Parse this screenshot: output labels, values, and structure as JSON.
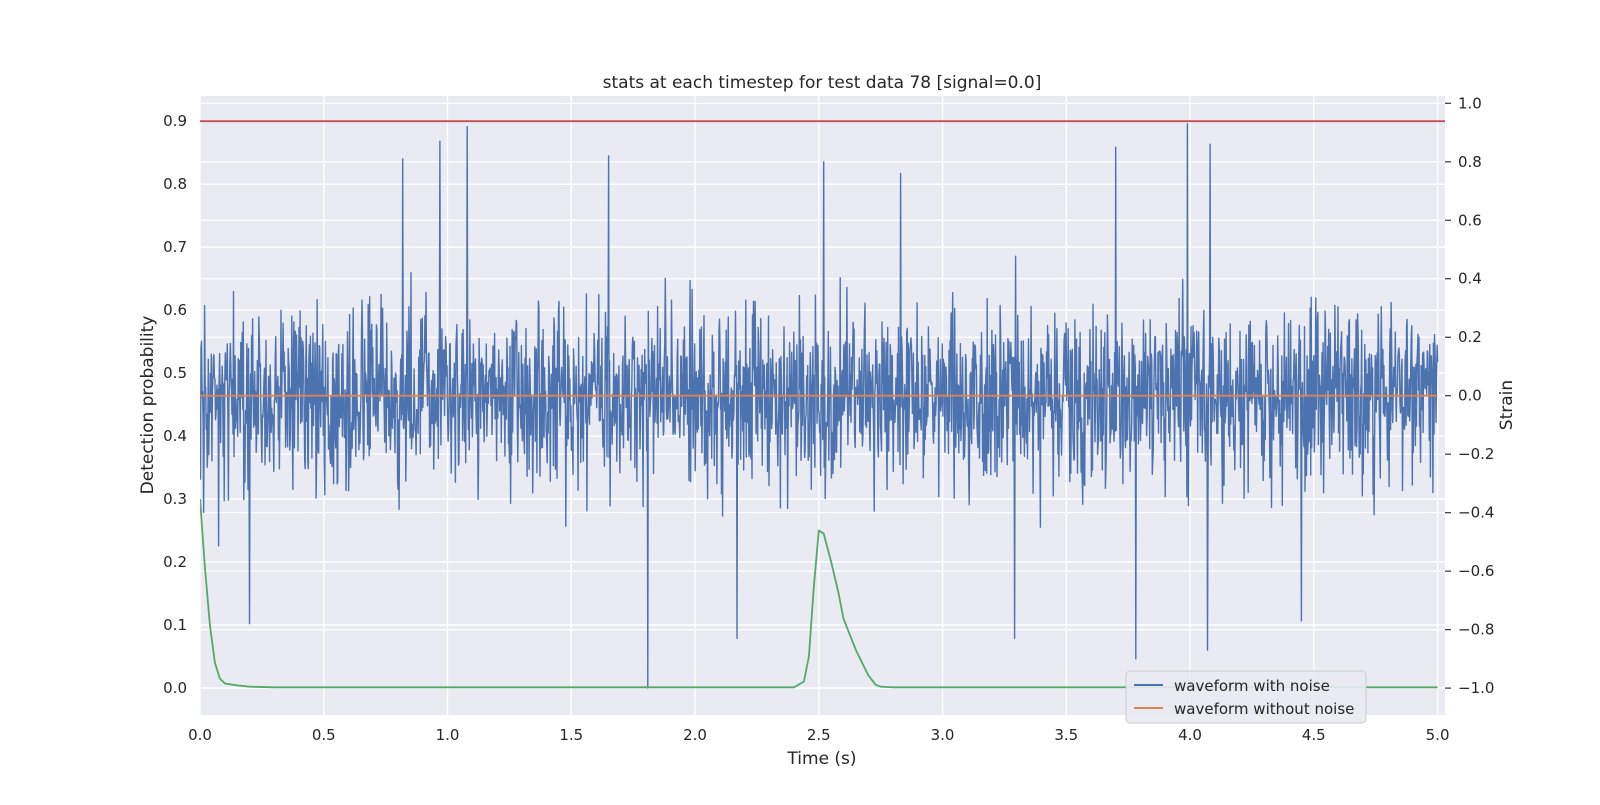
{
  "chart_data": {
    "type": "line",
    "title": "stats at each timestep for test data 78 [signal=0.0]",
    "xlabel": "Time (s)",
    "ylabel_left": "Detection probability",
    "ylabel_right": "Strain",
    "xlim": [
      0.0,
      5.03
    ],
    "ylim_left": [
      -0.043,
      0.94
    ],
    "ylim_right": [
      -1.092,
      1.025
    ],
    "x_ticks": [
      0.0,
      0.5,
      1.0,
      1.5,
      2.0,
      2.5,
      3.0,
      3.5,
      4.0,
      4.5,
      5.0
    ],
    "x_tick_labels": [
      "0.0",
      "0.5",
      "1.0",
      "1.5",
      "2.0",
      "2.5",
      "3.0",
      "3.5",
      "4.0",
      "4.5",
      "5.0"
    ],
    "y_ticks_left": [
      0.0,
      0.1,
      0.2,
      0.3,
      0.4,
      0.5,
      0.6,
      0.7,
      0.8,
      0.9
    ],
    "y_tick_labels_left": [
      "0.0",
      "0.1",
      "0.2",
      "0.3",
      "0.4",
      "0.5",
      "0.6",
      "0.7",
      "0.8",
      "0.9"
    ],
    "y_ticks_right": [
      -1.0,
      -0.8,
      -0.6,
      -0.4,
      -0.2,
      0.0,
      0.2,
      0.4,
      0.6,
      0.8,
      1.0
    ],
    "y_tick_labels_right": [
      "−1.0",
      "−0.8",
      "−0.6",
      "−0.4",
      "−0.2",
      "0.0",
      "0.2",
      "0.4",
      "0.6",
      "0.8",
      "1.0"
    ],
    "grid": true,
    "legend_position": "lower-right",
    "threshold": {
      "y": 0.9,
      "axis": "left",
      "color": "#c44e52"
    },
    "series": [
      {
        "name": "waveform with noise",
        "axis": "right",
        "color": "#4c72b0",
        "x_range": [
          0.0,
          5.0
        ],
        "baseline": 0.0,
        "amplitude_typical": 0.3,
        "extrema": [
          {
            "x": 0.82,
            "y": 0.81
          },
          {
            "x": 0.97,
            "y": 0.87
          },
          {
            "x": 1.08,
            "y": 0.92
          },
          {
            "x": 1.65,
            "y": 0.82
          },
          {
            "x": 2.52,
            "y": 0.8
          },
          {
            "x": 2.83,
            "y": 0.76
          },
          {
            "x": 3.7,
            "y": 0.85
          },
          {
            "x": 3.99,
            "y": 0.93
          },
          {
            "x": 4.08,
            "y": 0.86
          },
          {
            "x": 0.2,
            "y": -0.78
          },
          {
            "x": 1.81,
            "y": -1.0
          },
          {
            "x": 2.17,
            "y": -0.83
          },
          {
            "x": 3.29,
            "y": -0.83
          },
          {
            "x": 3.78,
            "y": -0.9
          },
          {
            "x": 4.07,
            "y": -0.87
          },
          {
            "x": 4.45,
            "y": -0.77
          }
        ]
      },
      {
        "name": "waveform without noise",
        "axis": "right",
        "color": "#dd8452",
        "x": [
          0.0,
          5.0
        ],
        "y": [
          0.0,
          0.0
        ]
      },
      {
        "name": "",
        "axis": "left",
        "color": "#55a868",
        "x": [
          0.0,
          0.02,
          0.04,
          0.06,
          0.08,
          0.1,
          0.15,
          0.2,
          0.3,
          1.0,
          2.0,
          2.4,
          2.44,
          2.46,
          2.48,
          2.5,
          2.52,
          2.55,
          2.58,
          2.6,
          2.65,
          2.7,
          2.73,
          2.75,
          2.8,
          3.5,
          4.5,
          5.0
        ],
        "y": [
          0.3,
          0.19,
          0.1,
          0.04,
          0.015,
          0.007,
          0.004,
          0.002,
          0.001,
          0.001,
          0.001,
          0.001,
          0.01,
          0.05,
          0.16,
          0.25,
          0.245,
          0.2,
          0.15,
          0.11,
          0.06,
          0.02,
          0.005,
          0.002,
          0.001,
          0.001,
          0.001,
          0.001
        ]
      }
    ]
  }
}
